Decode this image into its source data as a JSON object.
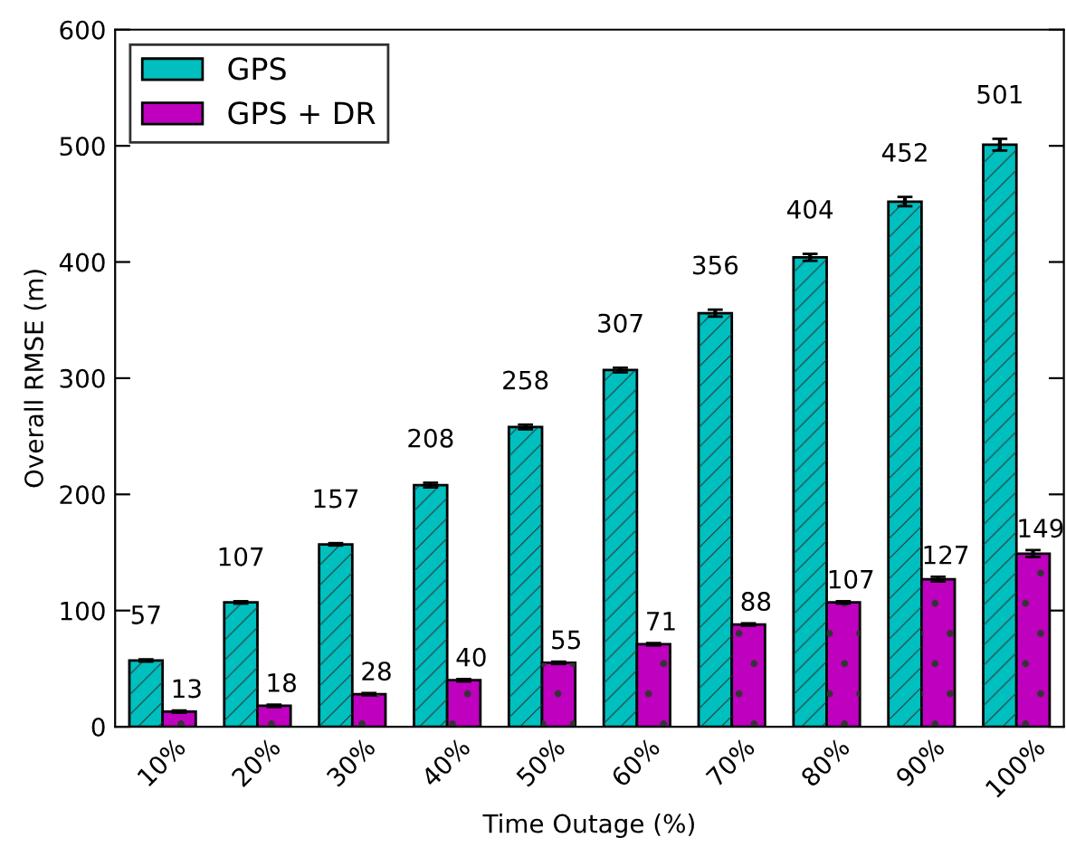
{
  "chart_data": {
    "type": "bar",
    "xlabel": "Time Outage (%)",
    "ylabel": "Overall RMSE (m)",
    "categories": [
      "10%",
      "20%",
      "30%",
      "40%",
      "50%",
      "60%",
      "70%",
      "80%",
      "90%",
      "100%"
    ],
    "series": [
      {
        "name": "GPS",
        "color": "#00bfbf",
        "values": [
          57,
          107,
          157,
          208,
          258,
          307,
          356,
          404,
          452,
          501
        ],
        "errors": [
          1,
          1,
          1,
          2,
          2,
          2,
          3,
          3,
          4,
          5
        ]
      },
      {
        "name": "GPS + DR",
        "color": "#bf00bf",
        "values": [
          13,
          18,
          28,
          40,
          55,
          71,
          88,
          107,
          127,
          149
        ],
        "errors": [
          1,
          1,
          1,
          1,
          1,
          1,
          1,
          1,
          2,
          3
        ]
      }
    ],
    "ylim": [
      0,
      600
    ],
    "yticks": [
      0,
      100,
      200,
      300,
      400,
      500,
      600
    ],
    "data_labels": true,
    "legend": "top left",
    "grid": false
  }
}
